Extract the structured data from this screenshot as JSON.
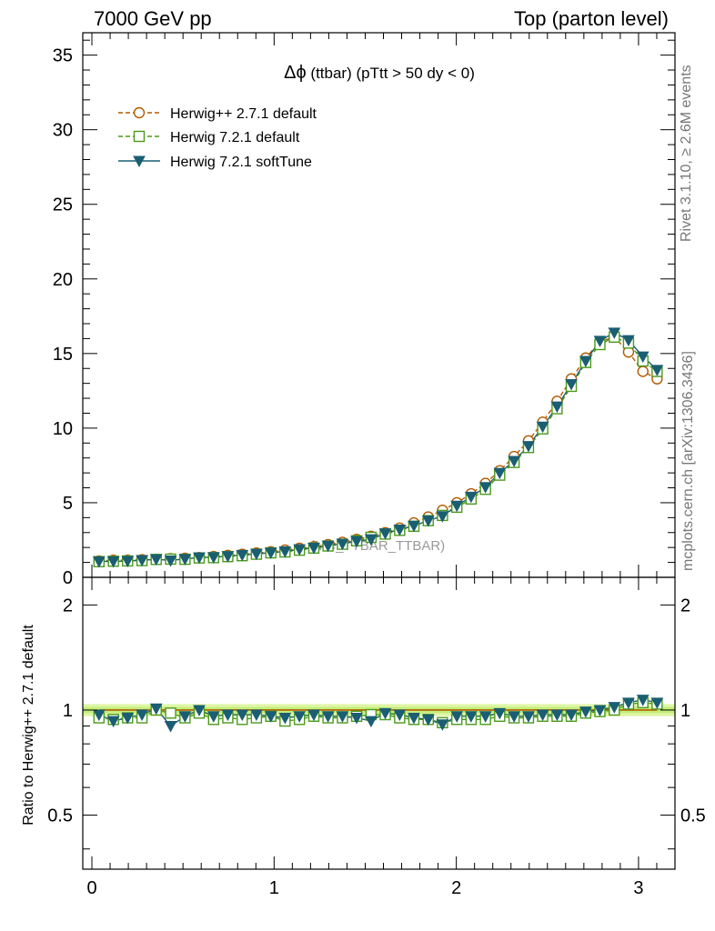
{
  "header": {
    "left": "7000 GeV pp",
    "right": "Top (parton level)"
  },
  "side_labels": {
    "rivet": "Rivet 3.1.10, ≥ 2.6M events",
    "mcplots": "mcplots.cern.ch [arXiv:1306.3436]"
  },
  "chart_data": [
    {
      "type": "line",
      "title_symbol": "Δϕ",
      "title_text": " (ttbar) (pTtt > 50 dy < 0)",
      "watermark": "(MC_TTBAR_TTBAR)",
      "xlim": [
        -0.05,
        3.2
      ],
      "ylim": [
        0,
        36.5
      ],
      "xticks": [
        0,
        1,
        2,
        3
      ],
      "yticks": [
        0,
        5,
        10,
        15,
        20,
        25,
        30,
        35
      ],
      "legend_position": "top-left",
      "x": [
        0.039,
        0.118,
        0.196,
        0.275,
        0.353,
        0.432,
        0.511,
        0.589,
        0.668,
        0.746,
        0.825,
        0.903,
        0.982,
        1.06,
        1.139,
        1.218,
        1.296,
        1.375,
        1.453,
        1.532,
        1.61,
        1.689,
        1.767,
        1.846,
        1.924,
        2.003,
        2.081,
        2.16,
        2.238,
        2.317,
        2.396,
        2.474,
        2.553,
        2.631,
        2.71,
        2.788,
        2.867,
        2.945,
        3.024,
        3.102
      ],
      "series": [
        {
          "name": "Herwig++ 2.7.1 default",
          "color": "#b35a00",
          "marker": "open-circle",
          "dash": "dashed",
          "values": [
            1.1,
            1.15,
            1.15,
            1.18,
            1.2,
            1.25,
            1.28,
            1.33,
            1.4,
            1.47,
            1.55,
            1.63,
            1.72,
            1.83,
            1.95,
            2.05,
            2.2,
            2.35,
            2.55,
            2.75,
            3.0,
            3.3,
            3.65,
            4.05,
            4.5,
            5.0,
            5.6,
            6.3,
            7.15,
            8.1,
            9.15,
            10.4,
            11.8,
            13.3,
            14.7,
            15.8,
            16.1,
            15.1,
            13.8,
            13.3
          ]
        },
        {
          "name": "Herwig 7.2.1 default",
          "color": "#4a9a1a",
          "marker": "open-square",
          "dash": "dashed",
          "values": [
            1.05,
            1.08,
            1.1,
            1.12,
            1.2,
            1.22,
            1.21,
            1.3,
            1.32,
            1.39,
            1.45,
            1.55,
            1.64,
            1.7,
            1.82,
            1.96,
            2.1,
            2.22,
            2.45,
            2.68,
            2.9,
            3.15,
            3.42,
            3.8,
            4.15,
            4.7,
            5.25,
            5.9,
            6.85,
            7.7,
            8.7,
            9.95,
            11.3,
            12.8,
            14.4,
            15.6,
            16.1,
            15.7,
            14.5,
            13.8
          ]
        },
        {
          "name": "Herwig 7.2.1 softTune",
          "color": "#1b5e73",
          "marker": "filled-triangle-down",
          "dash": "solid",
          "values": [
            1.07,
            1.07,
            1.09,
            1.15,
            1.21,
            1.13,
            1.23,
            1.33,
            1.35,
            1.42,
            1.5,
            1.58,
            1.65,
            1.74,
            1.88,
            1.98,
            2.12,
            2.25,
            2.42,
            2.55,
            2.95,
            3.2,
            3.46,
            3.8,
            4.1,
            4.8,
            5.4,
            6.05,
            7.0,
            7.8,
            8.8,
            10.1,
            11.45,
            12.95,
            14.5,
            15.85,
            16.4,
            15.9,
            14.8,
            13.9
          ]
        }
      ]
    },
    {
      "type": "line",
      "ylabel": "Ratio to Herwig++ 2.7.1 default",
      "xlim": [
        -0.05,
        3.2
      ],
      "ylim": [
        0.35,
        2.4
      ],
      "log_y": true,
      "yticks": [
        0.5,
        1,
        2
      ],
      "xticks": [
        0,
        1,
        2,
        3
      ],
      "reference_band": [
        0.96,
        1.04
      ],
      "series": [
        {
          "name": "Herwig++ 2.7.1 default",
          "color": "#b35a00",
          "values": [
            1,
            1,
            1,
            1,
            1,
            1,
            1,
            1,
            1,
            1,
            1,
            1,
            1,
            1,
            1,
            1,
            1,
            1,
            1,
            1,
            1,
            1,
            1,
            1,
            1,
            1,
            1,
            1,
            1,
            1,
            1,
            1,
            1,
            1,
            1,
            1,
            1,
            1,
            1,
            1
          ]
        },
        {
          "name": "Herwig 7.2.1 default",
          "color": "#4a9a1a",
          "values": [
            0.95,
            0.94,
            0.95,
            0.95,
            1.0,
            0.98,
            0.95,
            0.98,
            0.94,
            0.95,
            0.94,
            0.95,
            0.96,
            0.93,
            0.94,
            0.96,
            0.95,
            0.95,
            0.96,
            0.97,
            0.97,
            0.95,
            0.94,
            0.94,
            0.92,
            0.94,
            0.94,
            0.94,
            0.96,
            0.95,
            0.95,
            0.96,
            0.96,
            0.96,
            0.98,
            0.99,
            1.0,
            1.04,
            1.05,
            1.04
          ]
        },
        {
          "name": "Herwig 7.2.1 softTune",
          "color": "#1b5e73",
          "values": [
            0.97,
            0.93,
            0.95,
            0.97,
            1.01,
            0.9,
            0.96,
            1.0,
            0.96,
            0.97,
            0.97,
            0.97,
            0.96,
            0.95,
            0.96,
            0.97,
            0.96,
            0.96,
            0.95,
            0.93,
            0.98,
            0.97,
            0.95,
            0.94,
            0.91,
            0.96,
            0.96,
            0.96,
            0.98,
            0.96,
            0.96,
            0.97,
            0.97,
            0.97,
            0.99,
            1.0,
            1.02,
            1.05,
            1.07,
            1.05
          ]
        }
      ]
    }
  ]
}
